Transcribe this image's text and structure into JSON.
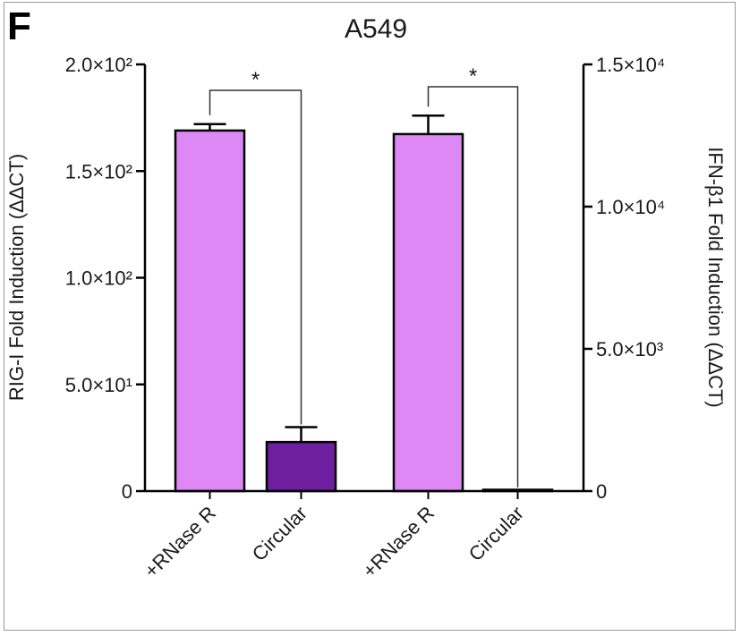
{
  "panel_label": "F",
  "chart_data": {
    "type": "bar",
    "title": "A549",
    "categories": [
      "+RNase R",
      "Circular",
      "+RNase R",
      "Circular"
    ],
    "left_axis": {
      "label": "RIG-I Fold Induction (ΔΔCT)",
      "ylim": [
        0,
        200
      ],
      "ticks": [
        {
          "value": 0,
          "label": "0"
        },
        {
          "value": 50,
          "label": "5.0×10¹"
        },
        {
          "value": 100,
          "label": "1.0×10²"
        },
        {
          "value": 150,
          "label": "1.5×10²"
        },
        {
          "value": 200,
          "label": "2.0×10²"
        }
      ]
    },
    "right_axis": {
      "label": "IFN-β1 Fold Induction (ΔΔCT)",
      "ylim": [
        0,
        15000
      ],
      "ticks": [
        {
          "value": 0,
          "label": "0"
        },
        {
          "value": 5000,
          "label": "5.0×10³"
        },
        {
          "value": 10000,
          "label": "1.0×10⁴"
        },
        {
          "value": 15000,
          "label": "1.5×10⁴"
        }
      ]
    },
    "bars": [
      {
        "category": "+RNase R",
        "axis": "left",
        "value": 169,
        "error": 3,
        "color": "#dd88f4"
      },
      {
        "category": "Circular",
        "axis": "left",
        "value": 23,
        "error": 7,
        "color": "#6d1fa0"
      },
      {
        "category": "+RNase R",
        "axis": "right",
        "value": 12550,
        "error": 650,
        "color": "#dd88f4"
      },
      {
        "category": "Circular",
        "axis": "right",
        "value": 30,
        "error": 0,
        "color": "#6d1fa0"
      }
    ],
    "significance": [
      {
        "from": 0,
        "to": 1,
        "label": "*"
      },
      {
        "from": 2,
        "to": 3,
        "label": "*"
      }
    ],
    "grid": false,
    "legend": "none"
  }
}
